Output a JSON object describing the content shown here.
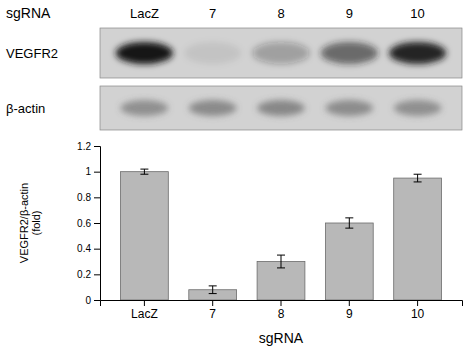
{
  "chart_data": {
    "type": "bar",
    "categories": [
      "LacZ",
      "7",
      "8",
      "9",
      "10"
    ],
    "values": [
      1.0,
      0.08,
      0.3,
      0.6,
      0.95
    ],
    "errors": [
      0.02,
      0.03,
      0.05,
      0.04,
      0.03
    ],
    "color": "#b8b8b8",
    "ylim": [
      0,
      1.2
    ],
    "yticks": [
      0,
      0.2,
      0.4,
      0.6,
      0.8,
      1,
      1.2
    ],
    "ylabel": "VEGFR2/β-actin\n(fold)",
    "xlabel": "sgRNA",
    "blots": {
      "header": "sgRNA",
      "rows": [
        {
          "label": "VEGFR2",
          "intensities": [
            1.0,
            0.07,
            0.28,
            0.58,
            0.93
          ]
        },
        {
          "label": "β-actin",
          "intensities": [
            0.55,
            0.6,
            0.62,
            0.58,
            0.55
          ]
        }
      ]
    }
  }
}
